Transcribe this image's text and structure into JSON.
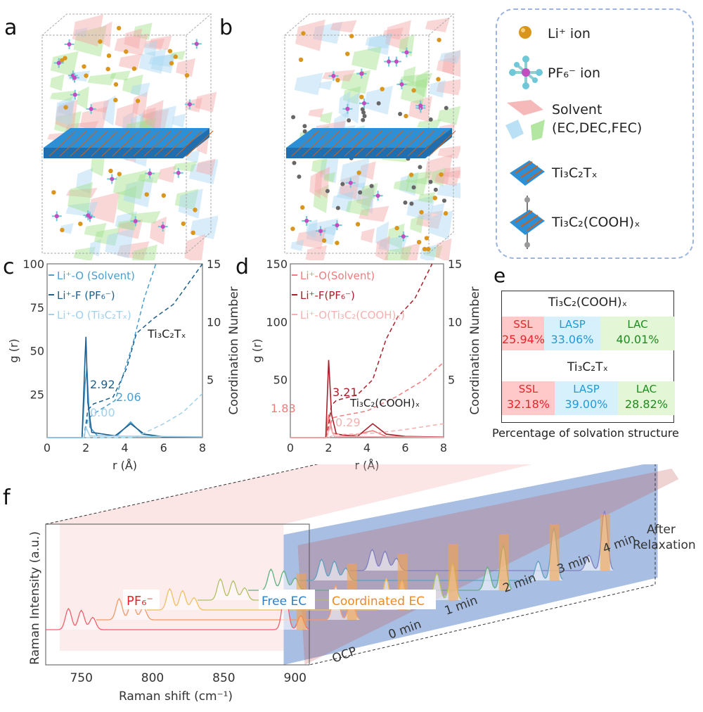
{
  "panel_labels": {
    "a": "a",
    "b": "b",
    "c": "c",
    "d": "d",
    "e": "e",
    "f": "f"
  },
  "legend": {
    "items": [
      {
        "label": "Li⁺ ion",
        "icon": "li-ion-sphere-icon"
      },
      {
        "label": "PF₆⁻ ion",
        "icon": "pf6-molecule-icon"
      },
      {
        "label": "Solvent",
        "icon": "solvent-polyhedra-icon"
      },
      {
        "label": "(EC,DEC,FEC)",
        "icon": ""
      },
      {
        "label": "Ti₃C₂Tₓ",
        "icon": "ti3c2tx-slab-icon"
      },
      {
        "label": "Ti₃C₂(COOH)ₓ",
        "icon": "ti3c2cooh-slab-icon"
      }
    ],
    "border_color": "#9bb4e0"
  },
  "colors": {
    "li_ion": "#d9951c",
    "solvent_red": "#f4a7a7",
    "solvent_blue": "#a9d8f2",
    "solvent_green": "#9fe08a",
    "slab_blue": "#2d8fd6"
  },
  "chart_data": [
    {
      "id": "c",
      "type": "line",
      "xlabel": "r (Å)",
      "ylabel": "g (r)",
      "y2label": "Coordination Number",
      "xlim": [
        0,
        8
      ],
      "ylim": [
        0,
        100
      ],
      "y2lim": [
        0,
        15
      ],
      "xticks": [
        "0",
        "2",
        "4",
        "6",
        "8"
      ],
      "yticks": [
        "25",
        "50",
        "75",
        "100"
      ],
      "y2ticks": [
        "5",
        "10",
        "15"
      ],
      "annotation": "Ti₃C₂Tₓ",
      "data_labels": [
        "2.92",
        "2.06",
        "0.00"
      ],
      "series": [
        {
          "name": "Li⁺-O (Solvent)",
          "color": "#4a9fd0",
          "g": [
            [
              0,
              0
            ],
            [
              1.8,
              0
            ],
            [
              1.95,
              30
            ],
            [
              2.05,
              40
            ],
            [
              2.2,
              6
            ],
            [
              2.6,
              1
            ],
            [
              3.6,
              1
            ],
            [
              4.3,
              9
            ],
            [
              4.9,
              2
            ],
            [
              6,
              0.5
            ],
            [
              8,
              0.5
            ]
          ],
          "cn": [
            [
              1.9,
              0
            ],
            [
              2.1,
              1.6
            ],
            [
              2.4,
              2.06
            ],
            [
              3.5,
              3.2
            ],
            [
              4.4,
              8
            ],
            [
              5,
              12
            ],
            [
              5.6,
              15
            ]
          ]
        },
        {
          "name": "Li⁺-F (PF₆⁻)",
          "color": "#1d5f8e",
          "g": [
            [
              0,
              0
            ],
            [
              1.8,
              0
            ],
            [
              1.95,
              45
            ],
            [
              2.0,
              58
            ],
            [
              2.1,
              20
            ],
            [
              2.3,
              3
            ],
            [
              3.5,
              1
            ],
            [
              4.3,
              8
            ],
            [
              5,
              2
            ],
            [
              6,
              0.5
            ],
            [
              8,
              0.5
            ]
          ],
          "cn": [
            [
              1.9,
              0
            ],
            [
              2.1,
              2.4
            ],
            [
              2.4,
              2.92
            ],
            [
              3.4,
              3.5
            ],
            [
              4.1,
              6
            ],
            [
              4.6,
              9
            ],
            [
              5.5,
              10.3
            ],
            [
              6.5,
              11.5
            ],
            [
              8,
              15
            ]
          ]
        },
        {
          "name": "Li⁺-O (Ti₃C₂Tₓ)",
          "color": "#9fd0ec",
          "g": [
            [
              0,
              0
            ],
            [
              1.9,
              0
            ],
            [
              2.0,
              6
            ],
            [
              2.2,
              1
            ],
            [
              8,
              0.5
            ]
          ],
          "cn": [
            [
              2,
              0
            ],
            [
              4.5,
              0
            ],
            [
              5,
              0.4
            ],
            [
              6,
              1.2
            ],
            [
              7,
              2.2
            ],
            [
              8,
              3.8
            ]
          ]
        }
      ]
    },
    {
      "id": "d",
      "type": "line",
      "xlabel": "r (Å)",
      "ylabel": "g (r)",
      "y2label": "Coordination Number",
      "xlim": [
        0,
        8
      ],
      "ylim": [
        0,
        150
      ],
      "y2lim": [
        0,
        15
      ],
      "xticks": [
        "0",
        "2",
        "4",
        "6",
        "8"
      ],
      "yticks": [
        "50",
        "100",
        "150"
      ],
      "y2ticks": [
        "5",
        "10",
        "15"
      ],
      "annotation": "Ti₃C₂(COOH)ₓ",
      "data_labels": [
        "3.21",
        "1.83",
        "0.29"
      ],
      "series": [
        {
          "name": "Li⁺-O(Solvent)",
          "color": "#f07c7c",
          "g": [
            [
              0,
              0
            ],
            [
              1.85,
              0
            ],
            [
              2.0,
              20
            ],
            [
              2.2,
              4
            ],
            [
              3,
              1
            ],
            [
              4.3,
              6
            ],
            [
              5,
              1
            ],
            [
              8,
              0.5
            ]
          ],
          "cn": [
            [
              1.9,
              0
            ],
            [
              2.2,
              1.7
            ],
            [
              2.5,
              1.83
            ],
            [
              4,
              2.3
            ],
            [
              5.5,
              3.5
            ],
            [
              7,
              5
            ],
            [
              8,
              6.5
            ]
          ]
        },
        {
          "name": "Li⁺-F(PF₆⁻)",
          "color": "#a8202a",
          "g": [
            [
              0,
              0
            ],
            [
              1.85,
              0
            ],
            [
              2.0,
              67
            ],
            [
              2.15,
              20
            ],
            [
              2.4,
              3
            ],
            [
              3.5,
              1
            ],
            [
              4.3,
              12
            ],
            [
              5,
              3
            ],
            [
              6,
              1
            ],
            [
              8,
              0.5
            ]
          ],
          "cn": [
            [
              1.9,
              0
            ],
            [
              2.15,
              2.8
            ],
            [
              2.4,
              3.21
            ],
            [
              3.5,
              3.7
            ],
            [
              4.3,
              5
            ],
            [
              5,
              8.5
            ],
            [
              5.6,
              10.4
            ],
            [
              6.5,
              12
            ],
            [
              7.4,
              15
            ]
          ]
        },
        {
          "name": "Li⁺-O(Ti₃C₂(COOH)ₓ)",
          "color": "#f6b0b0",
          "g": [
            [
              0,
              0
            ],
            [
              1.9,
              0
            ],
            [
              2.05,
              10
            ],
            [
              2.3,
              1
            ],
            [
              8,
              0.3
            ]
          ],
          "cn": [
            [
              2,
              0
            ],
            [
              2.3,
              0.25
            ],
            [
              3,
              0.29
            ],
            [
              4.5,
              0.4
            ],
            [
              6,
              0.7
            ],
            [
              8,
              1.2
            ]
          ]
        }
      ]
    },
    {
      "id": "e",
      "type": "table",
      "caption": "Percentage of solvation structure",
      "groups": [
        {
          "title": "Ti₃C₂(COOH)ₓ",
          "cells": [
            {
              "label": "SSL",
              "value": "25.94%",
              "color": "#e8242b",
              "bg": "#ffc9c9"
            },
            {
              "label": "LASP",
              "value": "33.06%",
              "color": "#1f9ad6",
              "bg": "#d6f1fc"
            },
            {
              "label": "LAC",
              "value": "40.01%",
              "color": "#1f8a1f",
              "bg": "#e3f7d6"
            }
          ]
        },
        {
          "title": "Ti₃C₂Tₓ",
          "cells": [
            {
              "label": "SSL",
              "value": "32.18%",
              "color": "#e8242b",
              "bg": "#ffc9c9"
            },
            {
              "label": "LASP",
              "value": "39.00%",
              "color": "#1f9ad6",
              "bg": "#d6f1fc"
            },
            {
              "label": "LAC",
              "value": "28.82%",
              "color": "#1f8a1f",
              "bg": "#e3f7d6"
            }
          ]
        }
      ]
    },
    {
      "id": "f",
      "type": "line",
      "xlabel": "Raman shift (cm⁻¹)",
      "ylabel": "Raman Intensity (a.u.)",
      "xlim": [
        725,
        910
      ],
      "xticks": [
        "750",
        "800",
        "850",
        "900"
      ],
      "series_labels": [
        "OCP",
        "0 min",
        "1 min",
        "2 min",
        "3 min",
        "4 min",
        "After Relaxation"
      ],
      "region_labels": {
        "pf6": "PF₆⁻",
        "free_ec": "Free EC",
        "coord_ec": "Coordinated EC"
      },
      "region_colors": {
        "pf6": "#f3b5b5",
        "free_ec": "#3f6fc0",
        "coord_ec": "#f6a24a"
      },
      "peaks": {
        "pf6": [
          741,
          750
        ],
        "free_ec": 893,
        "coord_ec": 904
      },
      "series_colors": [
        "#f0606a",
        "#f09a6a",
        "#f0c060",
        "#b0c060",
        "#60b080",
        "#60a0c0",
        "#8080c0"
      ]
    }
  ]
}
